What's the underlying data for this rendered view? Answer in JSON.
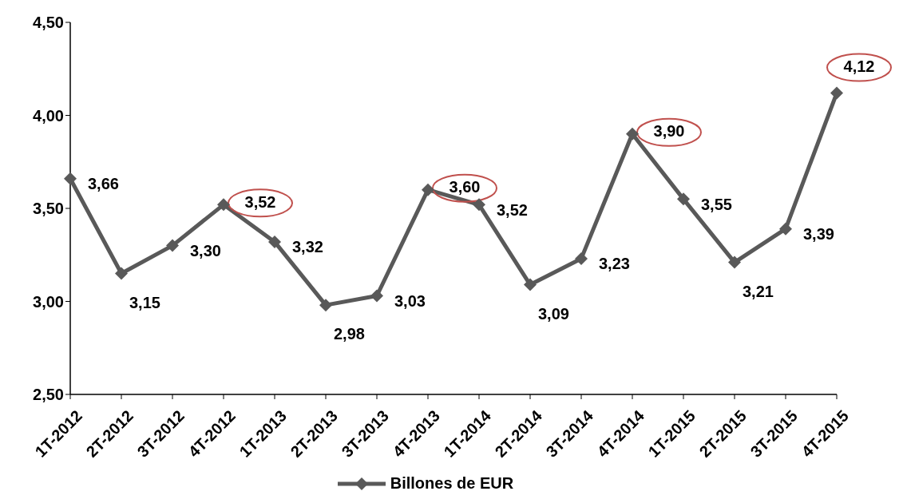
{
  "chart_data": {
    "type": "line",
    "categories": [
      "1T-2012",
      "2T-2012",
      "3T-2012",
      "4T-2012",
      "1T-2013",
      "2T-2013",
      "3T-2013",
      "4T-2013",
      "1T-2014",
      "2T-2014",
      "3T-2014",
      "4T-2014",
      "1T-2015",
      "2T-2015",
      "3T-2015",
      "4T-2015"
    ],
    "series": [
      {
        "name": "Billones de EUR",
        "color": "#595959",
        "values": [
          3.66,
          3.15,
          3.3,
          3.52,
          3.32,
          2.98,
          3.03,
          3.6,
          3.52,
          3.09,
          3.23,
          3.9,
          3.55,
          3.21,
          3.39,
          4.12
        ],
        "value_labels": [
          "3,66",
          "3,15",
          "3,30",
          null,
          "3,32",
          "2,98",
          "3,03",
          null,
          "3,52",
          "3,09",
          "3,23",
          null,
          "3,55",
          "3,21",
          "3,39",
          null
        ]
      }
    ],
    "annotations": [
      {
        "text": "3,52",
        "x": "4T-2012",
        "y": 3.52
      },
      {
        "text": "3,60",
        "x": "4T-2013",
        "y": 3.6
      },
      {
        "text": "3,90",
        "x": "4T-2014",
        "y": 3.9
      },
      {
        "text": "4,12",
        "x": "4T-2015",
        "y": 4.12
      }
    ],
    "ylim": [
      2.5,
      4.5
    ],
    "yticks": [
      {
        "value": 2.5,
        "label": "2,50"
      },
      {
        "value": 3.0,
        "label": "3,00"
      },
      {
        "value": 3.5,
        "label": "3,50"
      },
      {
        "value": 4.0,
        "label": "4,00"
      },
      {
        "value": 4.5,
        "label": "4,50"
      }
    ],
    "grid": false,
    "legend": "bottom",
    "marker": "diamond",
    "line_style": "solid"
  }
}
